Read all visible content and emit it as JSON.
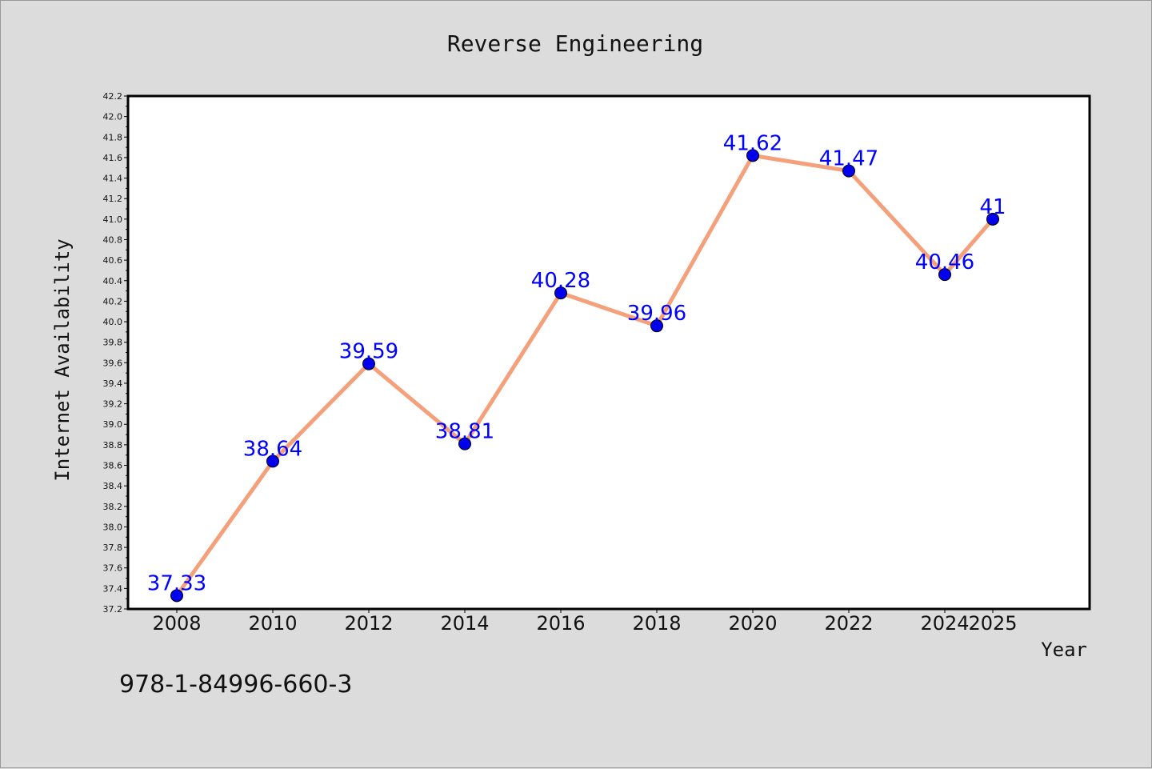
{
  "chart_data": {
    "type": "line",
    "title": "Reverse Engineering",
    "xlabel": "Year",
    "ylabel": "Internet Availability",
    "x": [
      2008,
      2010,
      2012,
      2014,
      2016,
      2018,
      2020,
      2022,
      2024,
      2025
    ],
    "x_tick_labels": [
      "2008",
      "2010",
      "2012",
      "2014",
      "2016",
      "2018",
      "2020",
      "2022",
      "2024",
      "2025"
    ],
    "series": [
      {
        "values": [
          37.33,
          38.64,
          39.59,
          38.81,
          40.28,
          39.96,
          41.62,
          41.47,
          40.46,
          41
        ],
        "data_labels": [
          "37.33",
          "38.64",
          "39.59",
          "38.81",
          "40.28",
          "39.96",
          "41.62",
          "41.47",
          "40.46",
          "41"
        ],
        "line_color": "#f4a07a",
        "marker_color": "#0000ee",
        "label_color": "#0000ff"
      }
    ],
    "ylim": [
      37.2,
      42.2
    ],
    "y_tick_step": 0.2,
    "y_tick_labels": [
      "37.2",
      "37.4",
      "37.6",
      "37.8",
      "38.0",
      "38.2",
      "38.4",
      "38.6",
      "38.8",
      "39.0",
      "39.2",
      "39.4",
      "39.6",
      "39.8",
      "40.0",
      "40.2",
      "40.4",
      "40.6",
      "40.8",
      "41.0",
      "41.2",
      "41.4",
      "41.6",
      "41.8",
      "42.0",
      "42.2"
    ],
    "grid": false,
    "legend": "none"
  },
  "footer_text": "978-1-84996-660-3"
}
